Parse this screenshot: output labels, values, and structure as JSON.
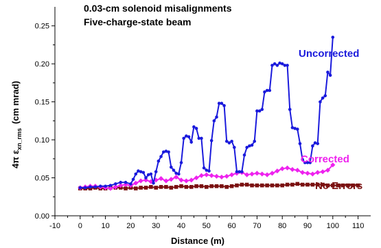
{
  "chart_data": {
    "type": "line",
    "title": "0.03-cm solenoid misalignments",
    "subtitle": "Five-charge-state beam",
    "xlabel": "Distance (m)",
    "ylabel_main": "4π ε",
    "ylabel_sub": "xn_rms",
    "ylabel_unit": "(cm mrad)",
    "xlim": [
      -10,
      115
    ],
    "ylim": [
      0,
      0.275
    ],
    "x_ticks": [
      -10,
      0,
      10,
      20,
      30,
      40,
      50,
      60,
      70,
      80,
      90,
      100,
      110
    ],
    "y_ticks": [
      0.0,
      0.05,
      0.1,
      0.15,
      0.2,
      0.25
    ],
    "grid": false,
    "legend": "inline labels at right end of each series",
    "series": [
      {
        "name": "Uncorrected",
        "color": "#1a1adc",
        "marker": "circle",
        "x": [
          0,
          2,
          4,
          6,
          8,
          10,
          12,
          14,
          16,
          18,
          20,
          21,
          22,
          23,
          24,
          25,
          26,
          27,
          28,
          29,
          30,
          31,
          32,
          33,
          34,
          35,
          36,
          37,
          38,
          39,
          40,
          41,
          42,
          43,
          44,
          45,
          46,
          47,
          48,
          49,
          50,
          51,
          52,
          53,
          54,
          55,
          56,
          57,
          58,
          59,
          60,
          61,
          62,
          63,
          64,
          65,
          66,
          67,
          68,
          69,
          70,
          71,
          72,
          73,
          74,
          75,
          76,
          77,
          78,
          79,
          80,
          81,
          82,
          83,
          84,
          85,
          86,
          87,
          88,
          89,
          90,
          91,
          92,
          93,
          94,
          95,
          96,
          97,
          98,
          99,
          100
        ],
        "y": [
          0.037,
          0.037,
          0.038,
          0.038,
          0.039,
          0.039,
          0.04,
          0.042,
          0.044,
          0.044,
          0.042,
          0.048,
          0.055,
          0.059,
          0.058,
          0.057,
          0.05,
          0.054,
          0.055,
          0.043,
          0.058,
          0.072,
          0.078,
          0.084,
          0.085,
          0.084,
          0.064,
          0.06,
          0.056,
          0.055,
          0.07,
          0.102,
          0.105,
          0.104,
          0.097,
          0.117,
          0.115,
          0.102,
          0.102,
          0.063,
          0.06,
          0.059,
          0.099,
          0.125,
          0.13,
          0.148,
          0.148,
          0.145,
          0.098,
          0.096,
          0.098,
          0.09,
          0.058,
          0.058,
          0.058,
          0.08,
          0.09,
          0.092,
          0.093,
          0.098,
          0.138,
          0.138,
          0.14,
          0.163,
          0.165,
          0.165,
          0.198,
          0.2,
          0.198,
          0.201,
          0.2,
          0.198,
          0.198,
          0.14,
          0.116,
          0.115,
          0.114,
          0.095,
          0.074,
          0.07,
          0.07,
          0.07,
          0.092,
          0.096,
          0.095,
          0.15,
          0.155,
          0.158,
          0.189,
          0.185,
          0.235
        ]
      },
      {
        "name": "Corrected",
        "color": "#ee22ee",
        "marker": "diamond",
        "x": [
          0,
          2,
          4,
          6,
          8,
          10,
          12,
          14,
          16,
          18,
          20,
          22,
          24,
          26,
          28,
          30,
          32,
          34,
          36,
          38,
          40,
          42,
          44,
          46,
          48,
          50,
          52,
          54,
          56,
          58,
          60,
          62,
          64,
          66,
          68,
          70,
          72,
          74,
          76,
          78,
          80,
          82,
          84,
          86,
          88,
          90,
          92,
          94,
          96,
          98,
          100
        ],
        "y": [
          0.037,
          0.038,
          0.039,
          0.039,
          0.038,
          0.037,
          0.036,
          0.038,
          0.04,
          0.041,
          0.04,
          0.043,
          0.046,
          0.047,
          0.045,
          0.047,
          0.049,
          0.046,
          0.048,
          0.051,
          0.047,
          0.046,
          0.047,
          0.05,
          0.053,
          0.054,
          0.053,
          0.052,
          0.051,
          0.052,
          0.054,
          0.056,
          0.057,
          0.054,
          0.055,
          0.056,
          0.055,
          0.054,
          0.056,
          0.059,
          0.062,
          0.063,
          0.061,
          0.06,
          0.057,
          0.056,
          0.055,
          0.057,
          0.058,
          0.06,
          0.067
        ]
      },
      {
        "name": "No Errors",
        "color": "#7a1010",
        "marker": "square",
        "x": [
          0,
          2,
          4,
          6,
          8,
          10,
          12,
          14,
          16,
          18,
          20,
          22,
          24,
          26,
          28,
          30,
          32,
          34,
          36,
          38,
          40,
          42,
          44,
          46,
          48,
          50,
          52,
          54,
          56,
          58,
          60,
          62,
          64,
          66,
          68,
          70,
          72,
          74,
          76,
          78,
          80,
          82,
          84,
          86,
          88,
          90,
          92,
          94,
          96,
          98,
          100,
          102,
          104,
          106,
          108,
          110
        ],
        "y": [
          0.036,
          0.036,
          0.036,
          0.037,
          0.036,
          0.036,
          0.037,
          0.037,
          0.037,
          0.036,
          0.037,
          0.036,
          0.037,
          0.037,
          0.038,
          0.037,
          0.038,
          0.038,
          0.037,
          0.038,
          0.039,
          0.038,
          0.038,
          0.039,
          0.039,
          0.038,
          0.039,
          0.039,
          0.039,
          0.038,
          0.039,
          0.04,
          0.041,
          0.041,
          0.04,
          0.04,
          0.04,
          0.04,
          0.04,
          0.04,
          0.04,
          0.041,
          0.041,
          0.042,
          0.041,
          0.041,
          0.041,
          0.041,
          0.041,
          0.04,
          0.04,
          0.04,
          0.04,
          0.04,
          0.04,
          0.04
        ]
      }
    ]
  }
}
